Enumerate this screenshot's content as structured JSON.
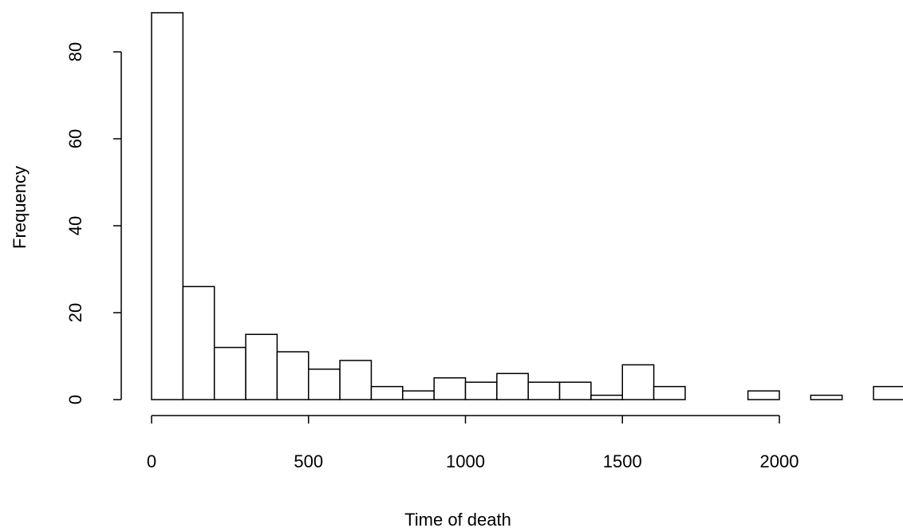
{
  "chart_data": {
    "type": "histogram",
    "xlabel": "Time of death",
    "ylabel": "Frequency",
    "bins": [
      0,
      100,
      200,
      300,
      400,
      500,
      600,
      700,
      800,
      900,
      1000,
      1100,
      1200,
      1300,
      1400,
      1500,
      1600,
      1700,
      1800,
      1900,
      2000,
      2100,
      2200,
      2300,
      2400
    ],
    "values": [
      89,
      26,
      12,
      15,
      11,
      7,
      9,
      3,
      2,
      5,
      4,
      6,
      4,
      4,
      1,
      8,
      3,
      0,
      0,
      2,
      0,
      1,
      0,
      3
    ],
    "color": "#ffffff",
    "xlim": [
      0,
      2000
    ],
    "xticks": [
      0,
      500,
      1000,
      1500,
      2000
    ],
    "ylim": [
      0,
      80
    ],
    "yticks": [
      0,
      20,
      40,
      60,
      80
    ]
  }
}
